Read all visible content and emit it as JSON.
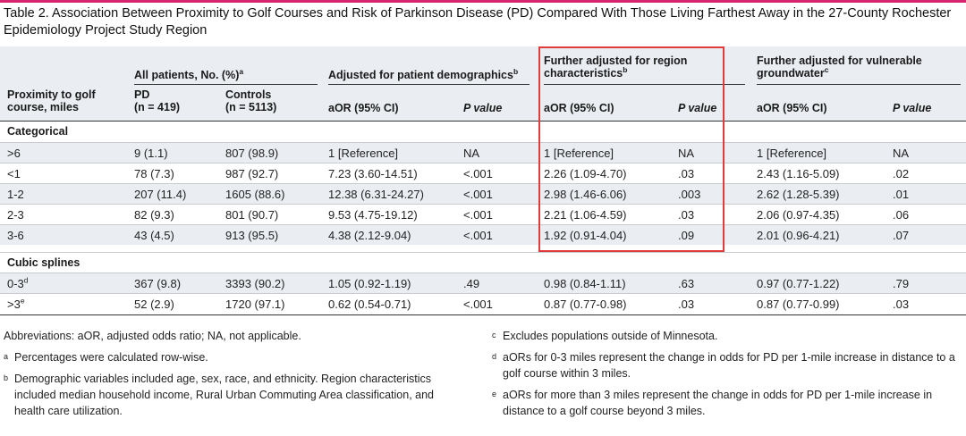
{
  "title": "Table 2. Association Between Proximity to Golf Courses and Risk of Parkinson Disease (PD) Compared With Those Living Farthest Away in the 27-County Rochester Epidemiology Project Study Region",
  "header": {
    "group_all": "All patients, No. (%)",
    "group_all_sup": "a",
    "group_demo": "Adjusted for patient demographics",
    "group_demo_sup": "b",
    "group_region_l1": "Further adjusted for region",
    "group_region_l2": "characteristics",
    "group_region_sup": "b",
    "group_water_l1": "Further adjusted for vulnerable",
    "group_water_l2": "groundwater",
    "group_water_sup": "c",
    "prox_l1": "Proximity to golf",
    "prox_l2": "course, miles",
    "pd_l1": "PD",
    "pd_l2": "(n = 419)",
    "ctrl_l1": "Controls",
    "ctrl_l2": "(n = 5113)",
    "aor": "aOR (95% CI)",
    "p": "P value"
  },
  "sections": [
    {
      "label": "Categorical",
      "rows": [
        {
          "prox": ">6",
          "sup": "",
          "pd": "9 (1.1)",
          "ctrl": "807 (98.9)",
          "aor1": "1 [Reference]",
          "p1": "NA",
          "aor2": "1 [Reference]",
          "p2": "NA",
          "aor3": "1 [Reference]",
          "p3": "NA"
        },
        {
          "prox": "<1",
          "sup": "",
          "pd": "78 (7.3)",
          "ctrl": "987 (92.7)",
          "aor1": "7.23 (3.60-14.51)",
          "p1": "<.001",
          "aor2": "2.26 (1.09-4.70)",
          "p2": ".03",
          "aor3": "2.43 (1.16-5.09)",
          "p3": ".02"
        },
        {
          "prox": "1-2",
          "sup": "",
          "pd": "207 (11.4)",
          "ctrl": "1605 (88.6)",
          "aor1": "12.38 (6.31-24.27)",
          "p1": "<.001",
          "aor2": "2.98 (1.46-6.06)",
          "p2": ".003",
          "aor3": "2.62 (1.28-5.39)",
          "p3": ".01"
        },
        {
          "prox": "2-3",
          "sup": "",
          "pd": "82 (9.3)",
          "ctrl": "801 (90.7)",
          "aor1": "9.53 (4.75-19.12)",
          "p1": "<.001",
          "aor2": "2.21 (1.06-4.59)",
          "p2": ".03",
          "aor3": "2.06 (0.97-4.35)",
          "p3": ".06"
        },
        {
          "prox": "3-6",
          "sup": "",
          "pd": "43 (4.5)",
          "ctrl": "913 (95.5)",
          "aor1": "4.38 (2.12-9.04)",
          "p1": "<.001",
          "aor2": "1.92 (0.91-4.04)",
          "p2": ".09",
          "aor3": "2.01 (0.96-4.21)",
          "p3": ".07"
        }
      ]
    },
    {
      "label": "Cubic splines",
      "rows": [
        {
          "prox": "0-3",
          "sup": "d",
          "pd": "367 (9.8)",
          "ctrl": "3393 (90.2)",
          "aor1": "1.05 (0.92-1.19)",
          "p1": ".49",
          "aor2": "0.98 (0.84-1.11)",
          "p2": ".63",
          "aor3": "0.97 (0.77-1.22)",
          "p3": ".79"
        },
        {
          "prox": ">3",
          "sup": "e",
          "pd": "52 (2.9)",
          "ctrl": "1720 (97.1)",
          "aor1": "0.62 (0.54-0.71)",
          "p1": "<.001",
          "aor2": "0.87 (0.77-0.98)",
          "p2": ".03",
          "aor3": "0.87 (0.77-0.99)",
          "p3": ".03"
        }
      ]
    }
  ],
  "footnotes_left": [
    {
      "mark": "",
      "text": "Abbreviations: aOR, adjusted odds ratio; NA, not applicable."
    },
    {
      "mark": "a",
      "text": "Percentages were calculated row-wise."
    },
    {
      "mark": "b",
      "text": "Demographic variables included age, sex, race, and ethnicity. Region characteristics included median household income, Rural Urban Commuting Area classification, and health care utilization."
    }
  ],
  "footnotes_right": [
    {
      "mark": "c",
      "text": "Excludes populations outside of Minnesota."
    },
    {
      "mark": "d",
      "text": "aORs for 0-3 miles represent the change in odds for PD per 1-mile increase in distance to a golf course within 3 miles."
    },
    {
      "mark": "e",
      "text": "aORs for more than 3 miles represent the change in odds for PD per 1-mile increase in distance to a golf course beyond 3 miles."
    }
  ],
  "colors": {
    "accent_bar": "#d6246e",
    "highlight_box": "#e23b3b",
    "header_bg": "#eaeef3"
  }
}
